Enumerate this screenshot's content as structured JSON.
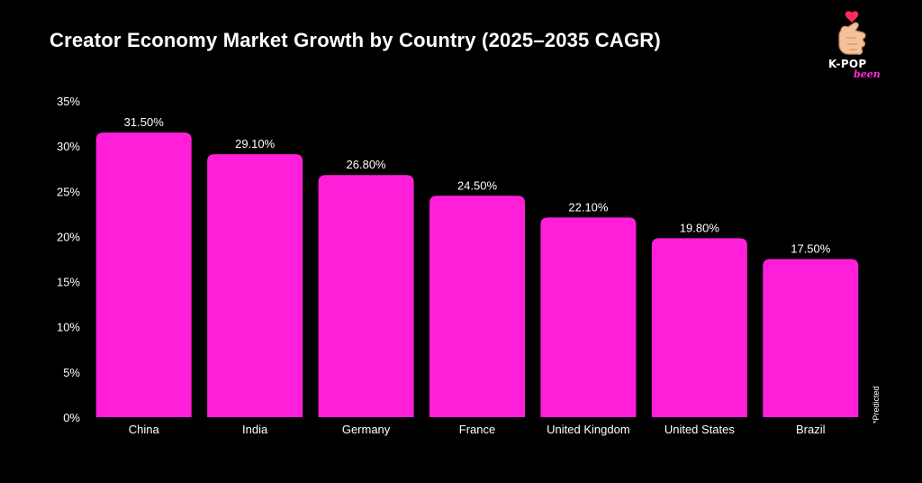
{
  "header": {
    "title": "Creator Economy Market Growth by Country (2025–2035 CAGR)"
  },
  "logo": {
    "main": "K-POP",
    "sub": "been",
    "icon": "finger-heart-hand-icon"
  },
  "footnote": "*Predicted",
  "colors": {
    "background": "#000000",
    "bar": "#ff1fd9",
    "text": "#ffffff",
    "accent": "#ff2bd6"
  },
  "chart_data": {
    "type": "bar",
    "title": "Creator Economy Market Growth by Country (2025–2035 CAGR)",
    "categories": [
      "China",
      "India",
      "Germany",
      "France",
      "United Kingdom",
      "United States",
      "Brazil"
    ],
    "values": [
      31.5,
      29.1,
      26.8,
      24.5,
      22.1,
      19.8,
      17.5
    ],
    "value_labels": [
      "31.50%",
      "29.10%",
      "26.80%",
      "24.50%",
      "22.10%",
      "19.80%",
      "17.50%"
    ],
    "y_ticks": [
      0,
      5,
      10,
      15,
      20,
      25,
      30,
      35
    ],
    "y_tick_labels": [
      "0%",
      "5%",
      "10%",
      "15%",
      "20%",
      "25%",
      "30%",
      "35%"
    ],
    "ylim": [
      0,
      35
    ],
    "xlabel": "",
    "ylabel": "",
    "grid": false,
    "legend": "none"
  }
}
